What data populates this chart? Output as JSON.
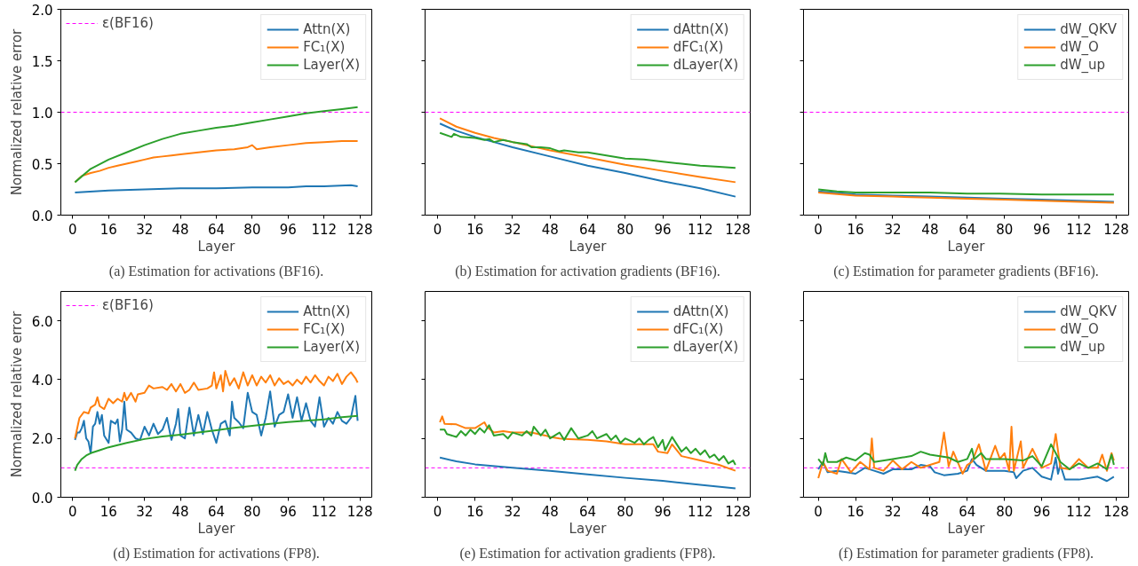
{
  "chart_data": [
    {
      "type": "line",
      "title": "(a) Estimation for activations (BF16).",
      "xlabel": "Layer",
      "ylabel": "Normalized relative error",
      "xlim": [
        -5.3,
        133.3
      ],
      "xticks": [
        0,
        16,
        32,
        48,
        64,
        80,
        96,
        112,
        128
      ],
      "ylim": [
        0,
        2
      ],
      "yticks": [
        {
          "value": 0,
          "label": "0.0"
        },
        {
          "value": 0.5,
          "label": "0.5"
        },
        {
          "value": 1,
          "label": "1.0"
        },
        {
          "value": 1.5,
          "label": "1.5"
        },
        {
          "value": 2,
          "label": "2.0"
        }
      ],
      "legend": "top right",
      "ref_lines": [
        {
          "axis": "y",
          "value": 1,
          "label": "ε(BF16)",
          "color": "#ff00ff",
          "line_style": "dashed"
        }
      ],
      "series": [
        {
          "name": "Attn(X)",
          "color": "#1f77b4",
          "x": [
            1,
            16,
            32,
            48,
            64,
            80,
            96,
            104,
            112,
            124,
            127
          ],
          "values": [
            0.22,
            0.24,
            0.25,
            0.26,
            0.26,
            0.27,
            0.27,
            0.28,
            0.28,
            0.29,
            0.28
          ]
        },
        {
          "name": "FC₁(X)",
          "color": "#ff7f0e",
          "x": [
            1,
            4,
            8,
            12,
            16,
            20,
            24,
            28,
            32,
            36,
            40,
            44,
            48,
            56,
            64,
            72,
            78,
            80,
            82,
            88,
            96,
            104,
            112,
            120,
            127
          ],
          "values": [
            0.32,
            0.38,
            0.41,
            0.43,
            0.46,
            0.48,
            0.5,
            0.52,
            0.54,
            0.56,
            0.57,
            0.58,
            0.59,
            0.61,
            0.63,
            0.64,
            0.66,
            0.68,
            0.64,
            0.66,
            0.68,
            0.7,
            0.71,
            0.72,
            0.72
          ]
        },
        {
          "name": "Layer(X)",
          "color": "#2ca02c",
          "x": [
            1,
            8,
            16,
            24,
            32,
            40,
            48,
            56,
            64,
            72,
            80,
            88,
            96,
            104,
            112,
            120,
            127
          ],
          "values": [
            0.32,
            0.45,
            0.54,
            0.61,
            0.68,
            0.74,
            0.79,
            0.82,
            0.85,
            0.87,
            0.9,
            0.93,
            0.96,
            0.99,
            1.01,
            1.03,
            1.05
          ]
        }
      ]
    },
    {
      "type": "line",
      "title": "(b) Estimation for activation gradients (BF16).",
      "xlabel": "Layer",
      "xlim": [
        -5.3,
        133.3
      ],
      "xticks": [
        0,
        16,
        32,
        48,
        64,
        80,
        96,
        112,
        128
      ],
      "ylim": [
        0,
        2
      ],
      "yticks": [
        {
          "value": 0,
          "label": null
        },
        {
          "value": 0.5,
          "label": null
        },
        {
          "value": 1,
          "label": null
        },
        {
          "value": 1.5,
          "label": null
        },
        {
          "value": 2,
          "label": null
        }
      ],
      "tick_labels": "x",
      "legend": "top right",
      "ref_lines": [
        {
          "axis": "y",
          "value": 1,
          "color": "#ff00ff",
          "line_style": "dashed"
        }
      ],
      "series": [
        {
          "name": "dAttn(X)",
          "color": "#1f77b4",
          "x": [
            1,
            8,
            16,
            24,
            32,
            48,
            64,
            80,
            96,
            112,
            127
          ],
          "values": [
            0.89,
            0.82,
            0.76,
            0.71,
            0.66,
            0.57,
            0.48,
            0.41,
            0.33,
            0.26,
            0.18
          ]
        },
        {
          "name": "dFC₁(X)",
          "color": "#ff7f0e",
          "x": [
            1,
            8,
            16,
            24,
            32,
            48,
            64,
            80,
            96,
            112,
            127
          ],
          "values": [
            0.94,
            0.86,
            0.8,
            0.75,
            0.71,
            0.63,
            0.56,
            0.49,
            0.43,
            0.37,
            0.32
          ]
        },
        {
          "name": "dLayer(X)",
          "color": "#2ca02c",
          "x": [
            1,
            6,
            7,
            10,
            16,
            20,
            22,
            24,
            28,
            32,
            38,
            40,
            44,
            48,
            52,
            54,
            60,
            64,
            72,
            80,
            88,
            96,
            104,
            112,
            120,
            127
          ],
          "values": [
            0.8,
            0.76,
            0.79,
            0.76,
            0.75,
            0.73,
            0.74,
            0.71,
            0.73,
            0.71,
            0.69,
            0.66,
            0.66,
            0.65,
            0.62,
            0.63,
            0.61,
            0.61,
            0.58,
            0.55,
            0.54,
            0.52,
            0.5,
            0.48,
            0.47,
            0.46
          ]
        }
      ]
    },
    {
      "type": "line",
      "title": "(c) Estimation for parameter gradients (BF16).",
      "xlabel": "Layer",
      "xlim": [
        -6.35,
        133.35
      ],
      "xticks": [
        0,
        16,
        32,
        48,
        64,
        80,
        96,
        112,
        128
      ],
      "ylim": [
        0,
        2
      ],
      "yticks": [
        {
          "value": 0,
          "label": null
        },
        {
          "value": 0.5,
          "label": null
        },
        {
          "value": 1,
          "label": null
        },
        {
          "value": 1.5,
          "label": null
        },
        {
          "value": 2,
          "label": null
        }
      ],
      "tick_labels": "x",
      "legend": "top right",
      "ref_lines": [
        {
          "axis": "y",
          "value": 1,
          "color": "#ff00ff",
          "line_style": "dashed"
        }
      ],
      "series": [
        {
          "name": "dW_QKV",
          "color": "#1f77b4",
          "x": [
            0,
            16,
            32,
            48,
            64,
            80,
            96,
            112,
            127
          ],
          "values": [
            0.23,
            0.2,
            0.19,
            0.18,
            0.17,
            0.16,
            0.15,
            0.14,
            0.13
          ]
        },
        {
          "name": "dW_O",
          "color": "#ff7f0e",
          "x": [
            0,
            16,
            32,
            48,
            64,
            80,
            96,
            112,
            127
          ],
          "values": [
            0.22,
            0.19,
            0.18,
            0.17,
            0.16,
            0.15,
            0.14,
            0.13,
            0.12
          ]
        },
        {
          "name": "dW_up",
          "color": "#2ca02c",
          "x": [
            0,
            8,
            16,
            32,
            48,
            64,
            78,
            96,
            112,
            127
          ],
          "values": [
            0.25,
            0.23,
            0.22,
            0.22,
            0.22,
            0.21,
            0.21,
            0.2,
            0.2,
            0.2
          ]
        }
      ]
    },
    {
      "type": "line",
      "title": "(d) Estimation for activations (FP8).",
      "xlabel": "Layer",
      "ylabel": "Normalized relative error",
      "xlim": [
        -5.3,
        133.3
      ],
      "xticks": [
        0,
        16,
        32,
        48,
        64,
        80,
        96,
        112,
        128
      ],
      "ylim": [
        0,
        7
      ],
      "yticks": [
        {
          "value": 0,
          "label": "0.0"
        },
        {
          "value": 2,
          "label": "2.0"
        },
        {
          "value": 4,
          "label": "4.0"
        },
        {
          "value": 6,
          "label": "6.0"
        }
      ],
      "legend": "top right",
      "ref_lines": [
        {
          "axis": "y",
          "value": 1,
          "label": "ε(BF16)",
          "color": "#ff00ff",
          "line_style": "dashed"
        }
      ],
      "series": [
        {
          "name": "Attn(X)",
          "color": "#1f77b4",
          "x": [
            1,
            2,
            3,
            4,
            5,
            6,
            7,
            8,
            9,
            10,
            11,
            12,
            13,
            14,
            16,
            17,
            19,
            20,
            21,
            22,
            23,
            24,
            26,
            28,
            30,
            32,
            34,
            36,
            38,
            40,
            42,
            44,
            46,
            47,
            48,
            50,
            52,
            54,
            56,
            58,
            60,
            62,
            64,
            66,
            68,
            70,
            71,
            72,
            74,
            76,
            78,
            80,
            82,
            84,
            86,
            88,
            90,
            92,
            94,
            96,
            98,
            100,
            102,
            104,
            106,
            108,
            110,
            112,
            114,
            116,
            118,
            120,
            122,
            124,
            126,
            127
          ],
          "values": [
            1.95,
            2.2,
            2.2,
            2.35,
            2.6,
            2.0,
            1.9,
            1.5,
            2.4,
            2.5,
            2.9,
            2.5,
            2.8,
            2.1,
            1.85,
            2.6,
            2.5,
            2.65,
            1.9,
            2.3,
            3.25,
            2.3,
            2.2,
            2.0,
            1.95,
            2.4,
            2.1,
            2.5,
            2.15,
            2.3,
            2.7,
            1.95,
            2.5,
            3.0,
            2.1,
            2.0,
            3.05,
            2.1,
            2.8,
            2.15,
            2.9,
            2.3,
            1.85,
            2.5,
            2.6,
            2.1,
            3.25,
            2.7,
            2.55,
            2.35,
            3.55,
            2.9,
            2.8,
            2.1,
            2.7,
            3.6,
            2.4,
            2.8,
            2.9,
            3.5,
            2.7,
            3.4,
            2.6,
            3.2,
            2.6,
            2.4,
            3.4,
            2.4,
            2.7,
            2.5,
            2.9,
            2.6,
            2.5,
            2.7,
            3.45,
            2.6
          ]
        },
        {
          "name": "FC₁(X)",
          "color": "#ff7f0e",
          "x": [
            1,
            3,
            5,
            7,
            8,
            10,
            11,
            12,
            14,
            16,
            18,
            20,
            22,
            23,
            24,
            26,
            28,
            29,
            32,
            34,
            36,
            40,
            42,
            44,
            46,
            48,
            50,
            52,
            54,
            56,
            60,
            62,
            63,
            64,
            66,
            67,
            68,
            70,
            72,
            74,
            76,
            78,
            80,
            82,
            84,
            86,
            88,
            90,
            92,
            94,
            96,
            98,
            100,
            102,
            104,
            106,
            108,
            110,
            112,
            114,
            116,
            118,
            120,
            122,
            124,
            126,
            127
          ],
          "values": [
            2.0,
            2.7,
            2.9,
            2.85,
            3.05,
            3.15,
            3.4,
            3.1,
            3.0,
            3.35,
            3.2,
            3.35,
            3.25,
            3.55,
            3.3,
            3.55,
            3.25,
            3.5,
            3.55,
            3.8,
            3.7,
            3.75,
            3.65,
            3.85,
            3.6,
            3.85,
            3.55,
            3.65,
            3.9,
            3.65,
            3.7,
            3.8,
            4.25,
            3.7,
            4.15,
            3.6,
            4.3,
            3.8,
            4.05,
            3.7,
            4.25,
            3.8,
            4.15,
            3.8,
            4.1,
            3.9,
            4.15,
            3.8,
            4.05,
            3.85,
            3.95,
            3.8,
            4.0,
            3.85,
            4.1,
            3.9,
            4.15,
            3.95,
            3.8,
            4.1,
            3.95,
            4.2,
            3.85,
            4.1,
            4.25,
            4.05,
            3.9
          ]
        },
        {
          "name": "Layer(X)",
          "color": "#2ca02c",
          "x": [
            1,
            2,
            4,
            6,
            8,
            12,
            16,
            24,
            32,
            40,
            48,
            56,
            64,
            72,
            80,
            88,
            96,
            104,
            112,
            120,
            127
          ],
          "values": [
            0.9,
            1.1,
            1.3,
            1.42,
            1.5,
            1.6,
            1.7,
            1.85,
            1.98,
            2.07,
            2.13,
            2.2,
            2.28,
            2.36,
            2.43,
            2.5,
            2.56,
            2.6,
            2.65,
            2.72,
            2.77
          ]
        }
      ]
    },
    {
      "type": "line",
      "title": "(e) Estimation for activation gradients (FP8).",
      "xlabel": "Layer",
      "xlim": [
        -5.3,
        133.3
      ],
      "xticks": [
        0,
        16,
        32,
        48,
        64,
        80,
        96,
        112,
        128
      ],
      "ylim": [
        0,
        7
      ],
      "yticks": [
        {
          "value": 0,
          "label": null
        },
        {
          "value": 2,
          "label": null
        },
        {
          "value": 4,
          "label": null
        },
        {
          "value": 6,
          "label": null
        }
      ],
      "tick_labels": "x",
      "legend": "top right",
      "ref_lines": [
        {
          "axis": "y",
          "value": 1,
          "color": "#ff00ff",
          "line_style": "dashed"
        }
      ],
      "series": [
        {
          "name": "dAttn(X)",
          "color": "#1f77b4",
          "x": [
            1,
            8,
            16,
            32,
            48,
            64,
            80,
            96,
            112,
            127
          ],
          "values": [
            1.35,
            1.22,
            1.12,
            1.0,
            0.9,
            0.78,
            0.66,
            0.56,
            0.42,
            0.3
          ]
        },
        {
          "name": "dFC₁(X)",
          "color": "#ff7f0e",
          "x": [
            1,
            2,
            3,
            8,
            12,
            16,
            20,
            21,
            24,
            28,
            32,
            40,
            46,
            48,
            52,
            56,
            64,
            72,
            80,
            88,
            92,
            94,
            98,
            100,
            104,
            112,
            120,
            127
          ],
          "values": [
            2.55,
            2.75,
            2.5,
            2.48,
            2.35,
            2.35,
            2.55,
            2.4,
            2.2,
            2.25,
            2.2,
            2.2,
            2.1,
            2.05,
            2.0,
            1.98,
            1.95,
            1.9,
            1.8,
            1.8,
            1.8,
            1.55,
            1.5,
            1.8,
            1.4,
            1.25,
            1.1,
            0.9
          ]
        },
        {
          "name": "dLayer(X)",
          "color": "#2ca02c",
          "x": [
            1,
            3,
            4,
            8,
            10,
            12,
            14,
            16,
            18,
            20,
            22,
            24,
            28,
            30,
            32,
            36,
            38,
            40,
            41,
            44,
            46,
            48,
            52,
            54,
            57,
            60,
            64,
            66,
            68,
            72,
            74,
            76,
            78,
            80,
            84,
            86,
            88,
            90,
            92,
            94,
            96,
            97,
            100,
            102,
            104,
            106,
            108,
            110,
            112,
            114,
            116,
            118,
            120,
            122,
            124,
            126,
            127
          ],
          "values": [
            2.3,
            2.3,
            2.15,
            2.05,
            2.25,
            2.1,
            2.3,
            2.15,
            2.35,
            2.2,
            2.45,
            2.1,
            2.15,
            2.0,
            2.2,
            2.1,
            2.25,
            2.1,
            2.4,
            2.1,
            2.3,
            2.0,
            2.2,
            1.95,
            2.35,
            2.0,
            2.1,
            2.25,
            2.0,
            2.15,
            1.95,
            2.1,
            1.85,
            2.0,
            1.85,
            2.0,
            1.8,
            1.95,
            2.05,
            1.7,
            1.95,
            1.6,
            2.05,
            1.8,
            1.55,
            1.7,
            1.5,
            1.65,
            1.45,
            1.6,
            1.35,
            1.45,
            1.25,
            1.4,
            1.15,
            1.25,
            1.1
          ]
        }
      ]
    },
    {
      "type": "line",
      "title": "(f) Estimation for parameter gradients (FP8).",
      "xlabel": "Layer",
      "xlim": [
        -6.35,
        133.35
      ],
      "xticks": [
        0,
        16,
        32,
        48,
        64,
        80,
        96,
        112,
        128
      ],
      "ylim": [
        0,
        7
      ],
      "yticks": [
        {
          "value": 0,
          "label": null
        },
        {
          "value": 2,
          "label": null
        },
        {
          "value": 4,
          "label": null
        },
        {
          "value": 6,
          "label": null
        }
      ],
      "tick_labels": "x",
      "legend": "top right",
      "ref_lines": [
        {
          "axis": "y",
          "value": 1,
          "color": "#ff00ff",
          "line_style": "dashed"
        }
      ],
      "series": [
        {
          "name": "dW_QKV",
          "color": "#1f77b4",
          "x": [
            0,
            2,
            4,
            8,
            12,
            16,
            20,
            24,
            28,
            32,
            40,
            44,
            48,
            50,
            54,
            60,
            64,
            66,
            68,
            72,
            80,
            84,
            85,
            88,
            92,
            96,
            100,
            102,
            103,
            104,
            106,
            112,
            120,
            124,
            127
          ],
          "values": [
            0.95,
            1.2,
            0.85,
            0.9,
            0.85,
            0.8,
            1.0,
            0.9,
            0.8,
            0.95,
            0.95,
            1.1,
            1.05,
            0.85,
            0.75,
            0.8,
            0.9,
            1.3,
            1.1,
            0.9,
            0.9,
            0.85,
            0.65,
            0.9,
            1.0,
            0.7,
            0.6,
            1.35,
            0.8,
            1.1,
            0.6,
            0.6,
            0.7,
            0.55,
            0.7
          ]
        },
        {
          "name": "dW_O",
          "color": "#ff7f0e",
          "x": [
            0,
            2,
            4,
            8,
            10,
            14,
            18,
            22,
            23,
            24,
            28,
            32,
            36,
            40,
            44,
            48,
            52,
            54,
            56,
            58,
            62,
            64,
            66,
            69,
            72,
            76,
            78,
            80,
            82,
            83,
            84,
            87,
            88,
            92,
            96,
            100,
            102,
            104,
            108,
            112,
            116,
            120,
            122,
            124,
            126,
            127
          ],
          "values": [
            0.65,
            1.2,
            0.9,
            0.8,
            1.3,
            0.85,
            1.2,
            0.95,
            2.0,
            1.0,
            0.9,
            1.25,
            0.95,
            1.2,
            1.0,
            1.1,
            1.2,
            2.2,
            1.05,
            1.55,
            0.8,
            1.1,
            1.2,
            1.8,
            0.9,
            1.75,
            1.3,
            1.5,
            0.9,
            2.4,
            0.9,
            1.9,
            1.0,
            1.65,
            1.0,
            1.15,
            2.15,
            1.0,
            0.95,
            1.3,
            1.0,
            1.0,
            1.45,
            0.9,
            1.5,
            1.25
          ]
        },
        {
          "name": "dW_up",
          "color": "#2ca02c",
          "x": [
            0,
            2,
            3,
            4,
            8,
            12,
            16,
            20,
            22,
            24,
            32,
            40,
            44,
            48,
            56,
            60,
            64,
            66,
            67,
            70,
            72,
            80,
            88,
            92,
            96,
            100,
            102,
            104,
            108,
            112,
            116,
            120,
            124,
            126,
            127
          ],
          "values": [
            1.3,
            1.1,
            1.5,
            1.2,
            1.2,
            1.35,
            1.25,
            1.5,
            1.45,
            1.2,
            1.3,
            1.4,
            1.55,
            1.45,
            1.35,
            1.2,
            1.3,
            1.65,
            1.3,
            1.5,
            1.3,
            1.3,
            1.25,
            1.4,
            1.05,
            1.8,
            1.5,
            1.2,
            0.95,
            1.15,
            1.0,
            1.15,
            0.95,
            1.45,
            1.1
          ]
        }
      ]
    }
  ]
}
